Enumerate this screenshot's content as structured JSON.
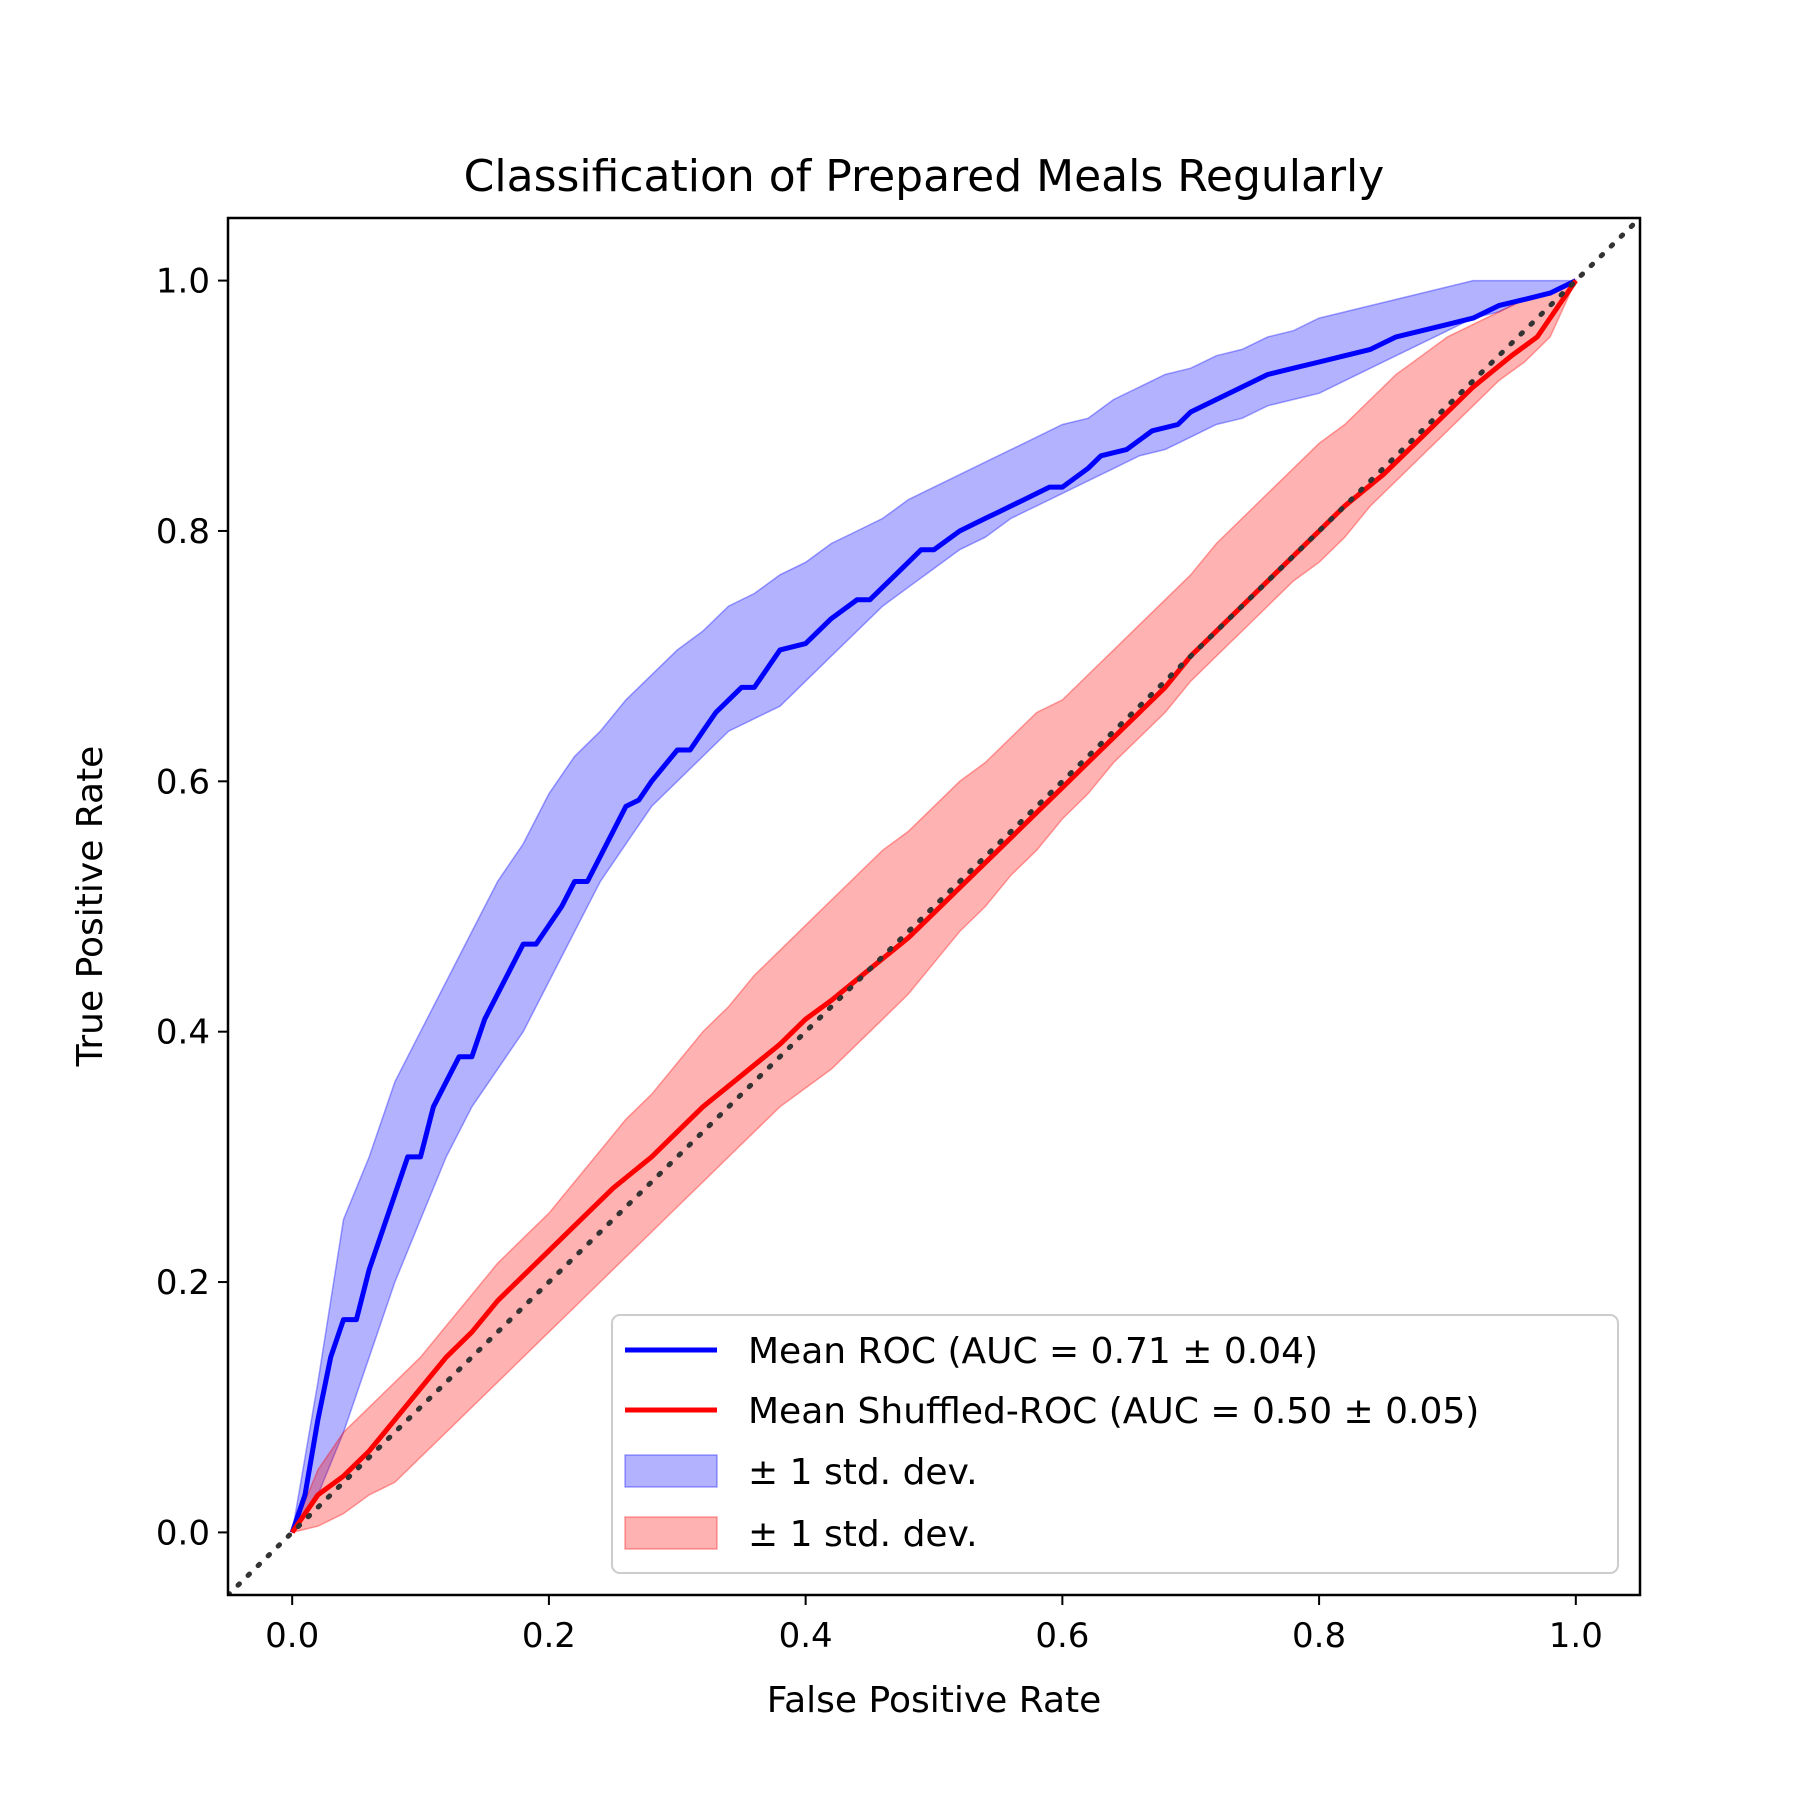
{
  "chart_data": {
    "type": "line",
    "title": "Classification of Prepared Meals Regularly",
    "xlabel": "False Positive Rate",
    "ylabel": "True Positive Rate",
    "xlim": [
      -0.05,
      1.05
    ],
    "ylim": [
      -0.05,
      1.05
    ],
    "xticks": [
      0.0,
      0.2,
      0.4,
      0.6,
      0.8,
      1.0
    ],
    "yticks": [
      0.0,
      0.2,
      0.4,
      0.6,
      0.8,
      1.0
    ],
    "xtick_labels": [
      "0.0",
      "0.2",
      "0.4",
      "0.6",
      "0.8",
      "1.0"
    ],
    "ytick_labels": [
      "0.0",
      "0.2",
      "0.4",
      "0.6",
      "0.8",
      "1.0"
    ],
    "grid": false,
    "legend_position": "lower-right",
    "series": [
      {
        "name": "Mean ROC (AUC = 0.71 ± 0.04)",
        "color": "#0000ff",
        "x": [
          0.0,
          0.01,
          0.02,
          0.03,
          0.04,
          0.05,
          0.06,
          0.08,
          0.09,
          0.1,
          0.11,
          0.13,
          0.14,
          0.15,
          0.17,
          0.18,
          0.19,
          0.21,
          0.22,
          0.23,
          0.25,
          0.26,
          0.27,
          0.28,
          0.3,
          0.31,
          0.32,
          0.33,
          0.35,
          0.36,
          0.37,
          0.38,
          0.4,
          0.42,
          0.44,
          0.45,
          0.47,
          0.49,
          0.5,
          0.52,
          0.54,
          0.55,
          0.57,
          0.59,
          0.6,
          0.62,
          0.63,
          0.65,
          0.67,
          0.69,
          0.7,
          0.72,
          0.74,
          0.76,
          0.78,
          0.8,
          0.82,
          0.84,
          0.86,
          0.88,
          0.9,
          0.92,
          0.94,
          0.96,
          0.98,
          1.0
        ],
        "y": [
          0.0,
          0.03,
          0.09,
          0.14,
          0.17,
          0.17,
          0.21,
          0.27,
          0.3,
          0.3,
          0.34,
          0.38,
          0.38,
          0.41,
          0.45,
          0.47,
          0.47,
          0.5,
          0.52,
          0.52,
          0.56,
          0.58,
          0.585,
          0.6,
          0.625,
          0.625,
          0.64,
          0.655,
          0.675,
          0.675,
          0.69,
          0.705,
          0.71,
          0.73,
          0.745,
          0.745,
          0.765,
          0.785,
          0.785,
          0.8,
          0.81,
          0.815,
          0.825,
          0.835,
          0.835,
          0.85,
          0.86,
          0.865,
          0.88,
          0.885,
          0.895,
          0.905,
          0.915,
          0.925,
          0.93,
          0.935,
          0.94,
          0.945,
          0.955,
          0.96,
          0.965,
          0.97,
          0.98,
          0.985,
          0.99,
          1.0
        ]
      },
      {
        "name": "Mean Shuffled-ROC (AUC = 0.50 ± 0.05)",
        "color": "#ff0000",
        "x": [
          0.0,
          0.01,
          0.02,
          0.04,
          0.06,
          0.08,
          0.1,
          0.12,
          0.14,
          0.16,
          0.18,
          0.2,
          0.22,
          0.25,
          0.28,
          0.3,
          0.32,
          0.35,
          0.38,
          0.4,
          0.42,
          0.45,
          0.48,
          0.5,
          0.52,
          0.55,
          0.58,
          0.6,
          0.62,
          0.65,
          0.68,
          0.7,
          0.72,
          0.75,
          0.78,
          0.8,
          0.82,
          0.85,
          0.88,
          0.9,
          0.92,
          0.95,
          0.97,
          0.98,
          1.0
        ],
        "y": [
          0.0,
          0.015,
          0.03,
          0.045,
          0.065,
          0.09,
          0.115,
          0.14,
          0.16,
          0.185,
          0.205,
          0.225,
          0.245,
          0.275,
          0.3,
          0.32,
          0.34,
          0.365,
          0.39,
          0.41,
          0.425,
          0.45,
          0.475,
          0.495,
          0.515,
          0.545,
          0.575,
          0.595,
          0.615,
          0.645,
          0.675,
          0.7,
          0.72,
          0.75,
          0.78,
          0.8,
          0.82,
          0.845,
          0.875,
          0.895,
          0.915,
          0.94,
          0.955,
          0.97,
          1.0
        ]
      }
    ],
    "bands": [
      {
        "name": "± 1 std. dev.",
        "color": "#0000ff",
        "alpha": 0.3,
        "x": [
          0.0,
          0.02,
          0.04,
          0.06,
          0.08,
          0.1,
          0.12,
          0.14,
          0.16,
          0.18,
          0.2,
          0.22,
          0.24,
          0.26,
          0.28,
          0.3,
          0.32,
          0.34,
          0.36,
          0.38,
          0.4,
          0.42,
          0.44,
          0.46,
          0.48,
          0.5,
          0.52,
          0.54,
          0.56,
          0.58,
          0.6,
          0.62,
          0.64,
          0.66,
          0.68,
          0.7,
          0.72,
          0.74,
          0.76,
          0.78,
          0.8,
          0.82,
          0.84,
          0.86,
          0.88,
          0.9,
          0.92,
          0.94,
          0.96,
          0.98,
          1.0
        ],
        "lower": [
          0.0,
          0.03,
          0.08,
          0.14,
          0.2,
          0.25,
          0.3,
          0.34,
          0.37,
          0.4,
          0.44,
          0.48,
          0.52,
          0.55,
          0.58,
          0.6,
          0.62,
          0.64,
          0.65,
          0.66,
          0.68,
          0.7,
          0.72,
          0.74,
          0.755,
          0.77,
          0.785,
          0.795,
          0.81,
          0.82,
          0.83,
          0.84,
          0.85,
          0.86,
          0.865,
          0.875,
          0.885,
          0.89,
          0.9,
          0.905,
          0.91,
          0.92,
          0.93,
          0.94,
          0.95,
          0.96,
          0.97,
          0.975,
          0.985,
          0.99,
          1.0
        ],
        "upper": [
          0.0,
          0.12,
          0.25,
          0.3,
          0.36,
          0.4,
          0.44,
          0.48,
          0.52,
          0.55,
          0.59,
          0.62,
          0.64,
          0.665,
          0.685,
          0.705,
          0.72,
          0.74,
          0.75,
          0.765,
          0.775,
          0.79,
          0.8,
          0.81,
          0.825,
          0.835,
          0.845,
          0.855,
          0.865,
          0.875,
          0.885,
          0.89,
          0.905,
          0.915,
          0.925,
          0.93,
          0.94,
          0.945,
          0.955,
          0.96,
          0.97,
          0.975,
          0.98,
          0.985,
          0.99,
          0.995,
          1.0,
          1.0,
          1.0,
          1.0,
          1.0
        ]
      },
      {
        "name": "± 1 std. dev.",
        "color": "#ff0000",
        "alpha": 0.3,
        "x": [
          0.0,
          0.02,
          0.04,
          0.06,
          0.08,
          0.1,
          0.12,
          0.14,
          0.16,
          0.18,
          0.2,
          0.22,
          0.24,
          0.26,
          0.28,
          0.3,
          0.32,
          0.34,
          0.36,
          0.38,
          0.4,
          0.42,
          0.44,
          0.46,
          0.48,
          0.5,
          0.52,
          0.54,
          0.56,
          0.58,
          0.6,
          0.62,
          0.64,
          0.66,
          0.68,
          0.7,
          0.72,
          0.74,
          0.76,
          0.78,
          0.8,
          0.82,
          0.84,
          0.86,
          0.88,
          0.9,
          0.92,
          0.94,
          0.96,
          0.98,
          1.0
        ],
        "lower": [
          0.0,
          0.005,
          0.015,
          0.03,
          0.04,
          0.06,
          0.08,
          0.1,
          0.12,
          0.14,
          0.16,
          0.18,
          0.2,
          0.22,
          0.24,
          0.26,
          0.28,
          0.3,
          0.32,
          0.34,
          0.355,
          0.37,
          0.39,
          0.41,
          0.43,
          0.455,
          0.48,
          0.5,
          0.525,
          0.545,
          0.57,
          0.59,
          0.615,
          0.635,
          0.655,
          0.68,
          0.7,
          0.72,
          0.74,
          0.76,
          0.775,
          0.795,
          0.82,
          0.84,
          0.86,
          0.88,
          0.9,
          0.92,
          0.935,
          0.955,
          1.0
        ],
        "upper": [
          0.0,
          0.05,
          0.08,
          0.1,
          0.12,
          0.14,
          0.165,
          0.19,
          0.215,
          0.235,
          0.255,
          0.28,
          0.305,
          0.33,
          0.35,
          0.375,
          0.4,
          0.42,
          0.445,
          0.465,
          0.485,
          0.505,
          0.525,
          0.545,
          0.56,
          0.58,
          0.6,
          0.615,
          0.635,
          0.655,
          0.665,
          0.685,
          0.705,
          0.725,
          0.745,
          0.765,
          0.79,
          0.81,
          0.83,
          0.85,
          0.87,
          0.885,
          0.905,
          0.925,
          0.94,
          0.955,
          0.965,
          0.975,
          0.985,
          0.99,
          1.0
        ]
      }
    ],
    "reference_line": {
      "x": [
        -0.05,
        1.05
      ],
      "y": [
        -0.05,
        1.05
      ],
      "color": "#333333",
      "style": "dotted"
    }
  }
}
